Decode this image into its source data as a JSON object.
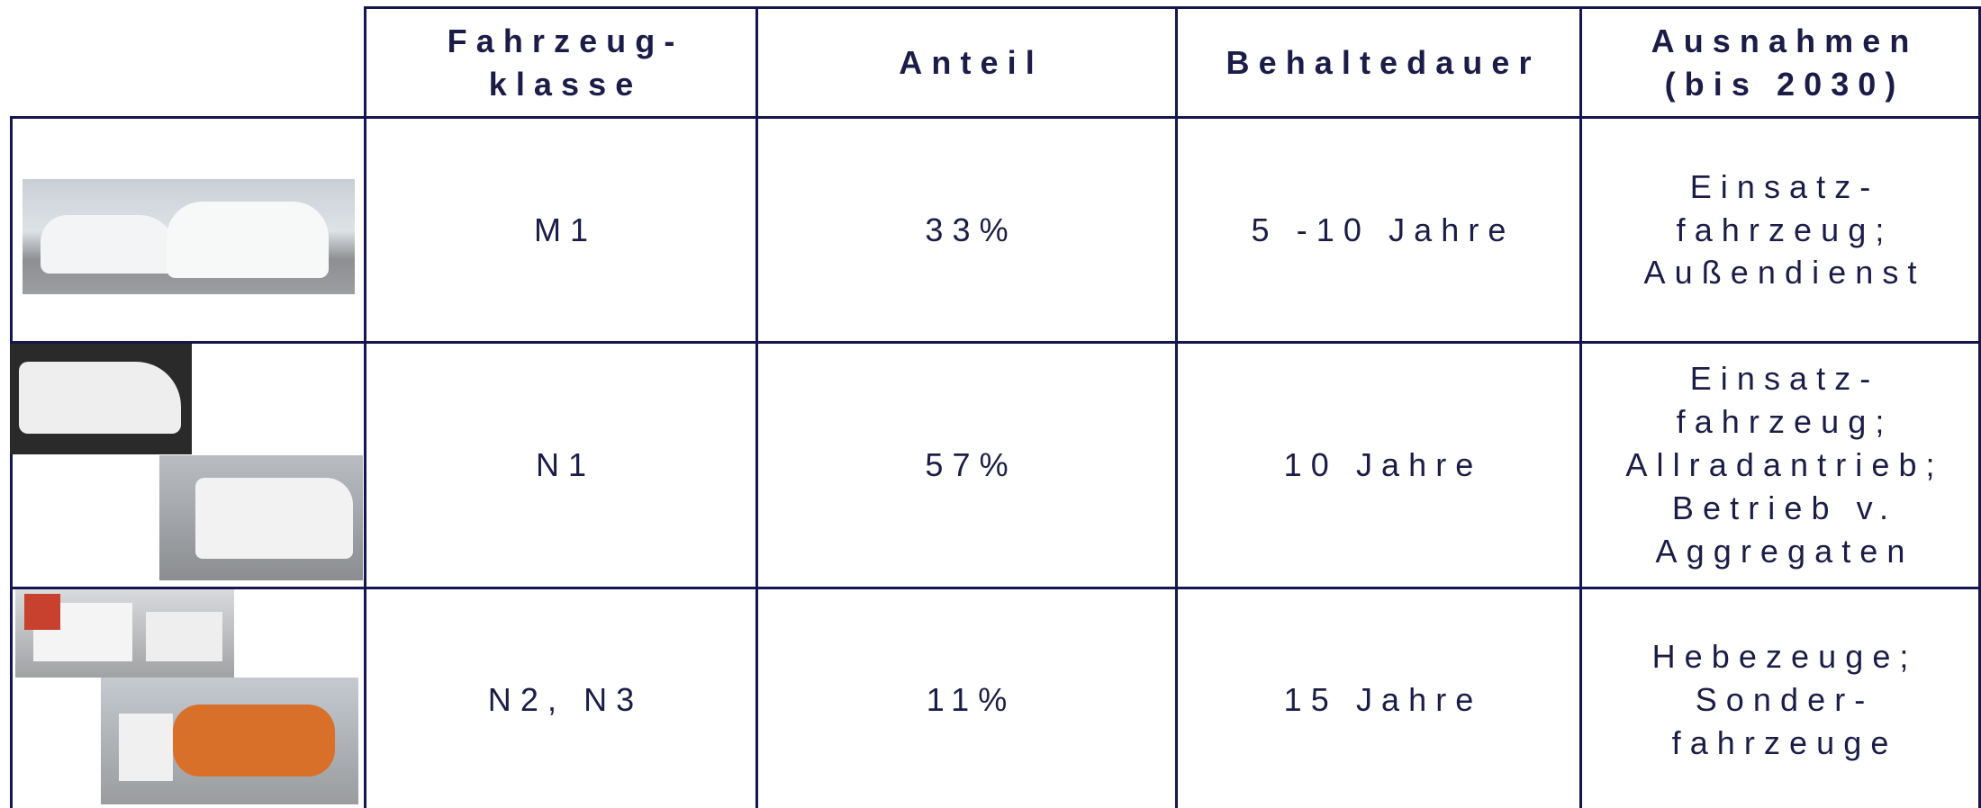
{
  "table": {
    "header": [
      "Fahrzeug-\nklasse",
      "Anteil",
      "Behaltedauer",
      "Ausnahmen\n(bis 2030)"
    ],
    "rows": [
      [
        "M1",
        "33%",
        "5 -10 Jahre",
        "Einsatz-\nfahrzeug;\nAußendienst"
      ],
      [
        "N1",
        "57%",
        "10 Jahre",
        "Einsatz-\nfahrzeug;\nAllradantrieb;\nBetrieb v.\nAggregaten"
      ],
      [
        "N2, N3",
        "11%",
        "15 Jahre",
        "Hebezeuge;\nSonder-\nfahrzeuge"
      ]
    ]
  }
}
